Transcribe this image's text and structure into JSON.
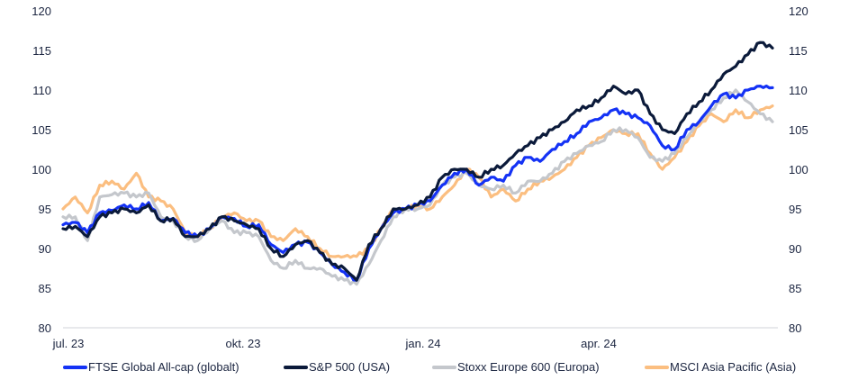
{
  "chart_data": {
    "type": "line",
    "title": "",
    "xlabel": "",
    "ylabel": "",
    "ylim": [
      80,
      120
    ],
    "yticks": [
      80,
      85,
      90,
      95,
      100,
      105,
      110,
      115,
      120
    ],
    "ytick_labels": [
      "80",
      "85",
      "90",
      "95",
      "100",
      "105",
      "110",
      "115",
      "120"
    ],
    "dual_y_axis": true,
    "x_start": "jul. 23",
    "x_tick_labels": [
      "jul. 23",
      "okt. 23",
      "jan. 24",
      "apr. 24"
    ],
    "x_tick_positions": [
      0,
      13,
      26,
      39
    ],
    "x_range": [
      0,
      52
    ],
    "grid": false,
    "legend_position": "bottom",
    "series": [
      {
        "name": "FTSE Global All-cap (globalt)",
        "color": "#1432f5",
        "values": [
          93.0,
          93.3,
          92.0,
          94.5,
          94.8,
          95.5,
          95.0,
          95.8,
          93.5,
          93.8,
          92.0,
          91.5,
          92.5,
          94.0,
          93.8,
          92.8,
          93.0,
          90.5,
          89.5,
          90.5,
          90.8,
          89.5,
          88.0,
          87.0,
          86.0,
          90.0,
          92.5,
          94.5,
          95.0,
          95.5,
          96.0,
          98.0,
          99.5,
          100.0,
          98.0,
          99.0,
          98.5,
          100.5,
          101.5,
          101.0,
          102.5,
          103.5,
          104.5,
          106.0,
          106.5,
          107.5,
          107.0,
          106.5,
          105.5,
          103.0,
          102.5,
          105.0,
          106.0,
          108.0,
          109.5,
          109.0,
          110.0,
          110.5,
          110.3
        ]
      },
      {
        "name": "S&P 500 (USA)",
        "color": "#0b1a3a",
        "values": [
          92.5,
          92.8,
          91.5,
          94.0,
          94.5,
          95.0,
          94.5,
          95.5,
          93.5,
          93.8,
          91.5,
          91.5,
          92.5,
          94.0,
          93.5,
          93.0,
          92.5,
          90.0,
          89.0,
          90.5,
          91.0,
          89.5,
          88.0,
          87.5,
          86.0,
          90.5,
          92.5,
          95.0,
          95.0,
          95.5,
          96.5,
          99.0,
          100.0,
          100.0,
          99.0,
          100.0,
          100.5,
          102.0,
          103.0,
          104.0,
          105.0,
          106.0,
          107.5,
          108.0,
          109.0,
          110.5,
          109.5,
          110.0,
          107.0,
          105.0,
          104.5,
          107.0,
          108.5,
          110.0,
          112.0,
          113.0,
          114.5,
          116.0,
          115.3
        ]
      },
      {
        "name": "Stoxx Europe 600 (Europa)",
        "color": "#c4c7cc",
        "values": [
          94.0,
          94.0,
          91.0,
          96.5,
          96.8,
          97.0,
          96.5,
          97.0,
          94.0,
          93.5,
          91.5,
          91.0,
          92.5,
          93.5,
          92.0,
          92.0,
          91.5,
          88.5,
          87.5,
          88.5,
          87.5,
          87.5,
          86.5,
          86.0,
          85.5,
          88.0,
          91.0,
          94.0,
          95.0,
          95.0,
          95.5,
          98.0,
          99.0,
          99.5,
          98.0,
          97.5,
          98.0,
          97.0,
          98.5,
          98.5,
          99.5,
          101.0,
          102.0,
          103.0,
          103.5,
          105.0,
          105.0,
          104.0,
          101.5,
          101.0,
          102.0,
          104.0,
          106.0,
          107.5,
          109.0,
          110.0,
          108.5,
          107.0,
          106.0
        ]
      },
      {
        "name": "MSCI Asia Pacific (Asia)",
        "color": "#fbbe80",
        "values": [
          95.0,
          96.5,
          94.5,
          98.0,
          98.5,
          97.5,
          99.5,
          96.5,
          96.0,
          95.0,
          92.0,
          91.5,
          92.5,
          94.0,
          94.5,
          93.5,
          93.5,
          91.5,
          91.0,
          92.5,
          91.5,
          90.0,
          89.0,
          89.0,
          89.0,
          90.0,
          92.5,
          95.0,
          95.0,
          95.5,
          95.0,
          96.5,
          98.0,
          100.0,
          99.0,
          96.5,
          97.5,
          96.0,
          97.5,
          98.5,
          99.0,
          100.0,
          101.5,
          103.0,
          104.0,
          105.0,
          104.5,
          104.5,
          102.0,
          100.0,
          101.5,
          103.5,
          105.5,
          107.0,
          106.0,
          107.5,
          106.5,
          107.5,
          108.0
        ]
      }
    ]
  }
}
